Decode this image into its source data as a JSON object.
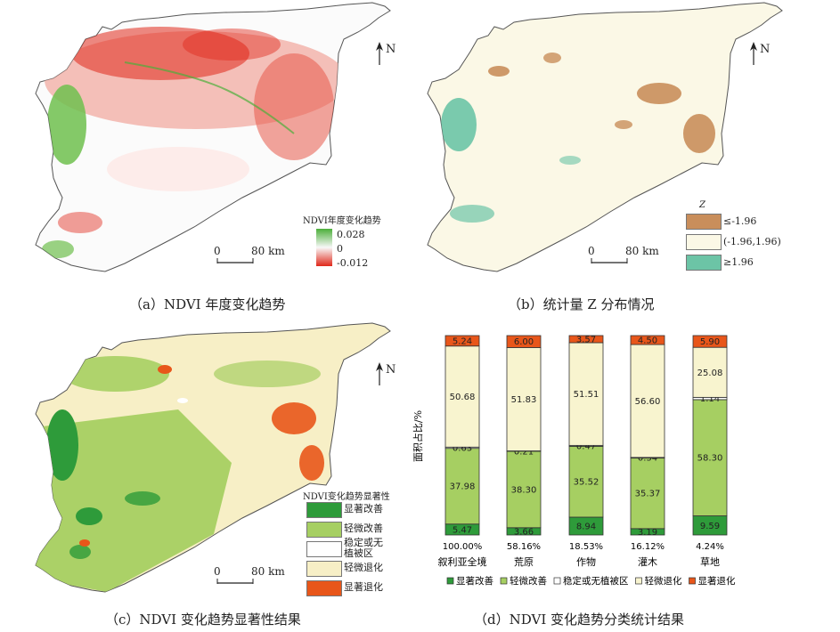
{
  "panels": {
    "a": {
      "caption": "（a）NDVI 年度变化趋势",
      "north": "N",
      "scale": {
        "zero": "0",
        "dist": "80 km"
      },
      "legend": {
        "title": "NDVI年度变化趋势",
        "max": "0.028",
        "mid": "0",
        "min": "-0.012"
      },
      "colors": {
        "pos": "#4caf3a",
        "neg": "#e0281a",
        "neutral": "#fbfbfb"
      }
    },
    "b": {
      "caption": "（b）统计量 Z 分布情况",
      "north": "N",
      "scale": {
        "zero": "0",
        "dist": "80 km"
      },
      "legend": {
        "title": "Z",
        "items": [
          {
            "label": "≤-1.96",
            "color": "#c98e5b"
          },
          {
            "label": "(-1.96,1.96)",
            "color": "#fbf8e6"
          },
          {
            "label": "≥1.96",
            "color": "#6cc4a6"
          }
        ]
      }
    },
    "c": {
      "caption": "（c）NDVI 变化趋势显著性结果",
      "north": "N",
      "scale": {
        "zero": "0",
        "dist": "80 km"
      },
      "legend": {
        "title": "NDVI变化趋势显著性",
        "items": [
          {
            "label": "显著改善",
            "color": "#2e9b3a"
          },
          {
            "label": "轻微改善",
            "color": "#a6cf62"
          },
          {
            "label": "稳定或无\n植被区",
            "color": "#ffffff"
          },
          {
            "label": "轻微退化",
            "color": "#f7efc6"
          },
          {
            "label": "显著退化",
            "color": "#e8561a"
          }
        ]
      }
    },
    "d": {
      "caption": "（d）NDVI 变化趋势分类统计结果",
      "ylabel": "面积占比/%"
    }
  },
  "chart_data": {
    "type": "bar",
    "stacked": true,
    "title": "",
    "ylabel": "面积占比/%",
    "ylim": [
      0,
      100
    ],
    "categories": [
      "叙利亚全境",
      "荒原",
      "作物",
      "灌木",
      "草地"
    ],
    "area_share": [
      "100.00%",
      "58.16%",
      "18.53%",
      "16.12%",
      "4.24%"
    ],
    "series": [
      {
        "name": "显著改善",
        "color": "#2e9b3a",
        "values": [
          5.47,
          3.66,
          8.94,
          3.19,
          9.59
        ]
      },
      {
        "name": "轻微改善",
        "color": "#a6cf62",
        "values": [
          37.98,
          38.3,
          35.52,
          35.37,
          58.3
        ]
      },
      {
        "name": "稳定或无植被区",
        "color": "#ffffff",
        "values": [
          0.63,
          0.21,
          0.47,
          0.34,
          1.14
        ]
      },
      {
        "name": "轻微退化",
        "color": "#f8f4cf",
        "values": [
          50.68,
          51.83,
          51.51,
          56.6,
          25.08
        ]
      },
      {
        "name": "显著退化",
        "color": "#e8561a",
        "values": [
          5.24,
          6.0,
          3.57,
          4.5,
          5.9
        ]
      }
    ],
    "value_labels": [
      [
        "5.47",
        "37.98",
        "0.63",
        "50.68",
        "5.24"
      ],
      [
        "3.66",
        "38.30",
        "0.21",
        "51.83",
        "6.00"
      ],
      [
        "8.94",
        "35.52",
        "0.47",
        "51.51",
        "3.57"
      ],
      [
        "3.19",
        "35.37",
        "0.34",
        "56.60",
        "4.50"
      ],
      [
        "9.59",
        "58.30",
        "1.14",
        "25.08",
        "5.90"
      ]
    ],
    "legend_position": "bottom"
  }
}
